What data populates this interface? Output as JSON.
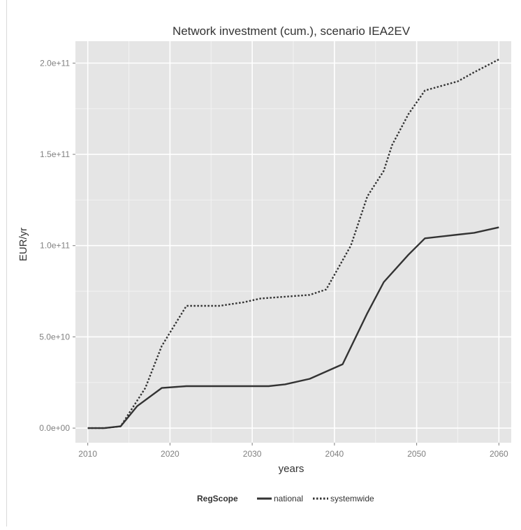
{
  "chart_data": {
    "type": "line",
    "title": "Network investment (cum.), scenario IEA2EV",
    "xlabel": "years",
    "ylabel": "EUR/yr",
    "xlim": [
      2008.5,
      2061.5
    ],
    "ylim": [
      -8000000000,
      212000000000
    ],
    "x_ticks": [
      2010,
      2020,
      2030,
      2040,
      2050,
      2060
    ],
    "x_tick_labels": [
      "2010",
      "2020",
      "2030",
      "2040",
      "2050",
      "2060"
    ],
    "y_ticks": [
      0,
      50000000000,
      100000000000,
      150000000000,
      200000000000
    ],
    "y_tick_labels": [
      "0.0e+00",
      "5.0e+10",
      "1.0e+11",
      "1.5e+11",
      "2.0e+11"
    ],
    "grid": true,
    "legend": {
      "title": "RegScope",
      "placement": "bottom"
    },
    "series": [
      {
        "name": "national",
        "line_style": "solid",
        "color": "#333333",
        "x": [
          2010,
          2012,
          2014,
          2016,
          2019,
          2022,
          2025,
          2028,
          2032,
          2034,
          2037,
          2041,
          2044,
          2046,
          2049,
          2051,
          2055,
          2057,
          2060
        ],
        "y": [
          0,
          0,
          1000000000,
          12000000000,
          22000000000,
          23000000000,
          23000000000,
          23000000000,
          23000000000,
          24000000000,
          27000000000,
          35000000000,
          63000000000,
          80000000000,
          95000000000,
          104000000000,
          106000000000,
          107000000000,
          110000000000
        ]
      },
      {
        "name": "systemwide",
        "line_style": "dotted",
        "color": "#333333",
        "x": [
          2010,
          2012,
          2014,
          2016,
          2017,
          2019,
          2022,
          2026,
          2029,
          2031,
          2034,
          2037,
          2039,
          2042,
          2044,
          2046,
          2047,
          2049,
          2051,
          2055,
          2057,
          2060
        ],
        "y": [
          0,
          0,
          1000000000,
          15000000000,
          22000000000,
          45000000000,
          67000000000,
          67000000000,
          69000000000,
          71000000000,
          72000000000,
          73000000000,
          76000000000,
          100000000000,
          127000000000,
          141000000000,
          155000000000,
          172000000000,
          185000000000,
          190000000000,
          195000000000,
          202000000000
        ]
      }
    ]
  },
  "colors": {
    "panel": "#e5e5e5",
    "grid_major": "#ffffff",
    "grid_minor": "#f2f2f2",
    "text": "#333333",
    "tick_text": "#7f7f7f"
  }
}
